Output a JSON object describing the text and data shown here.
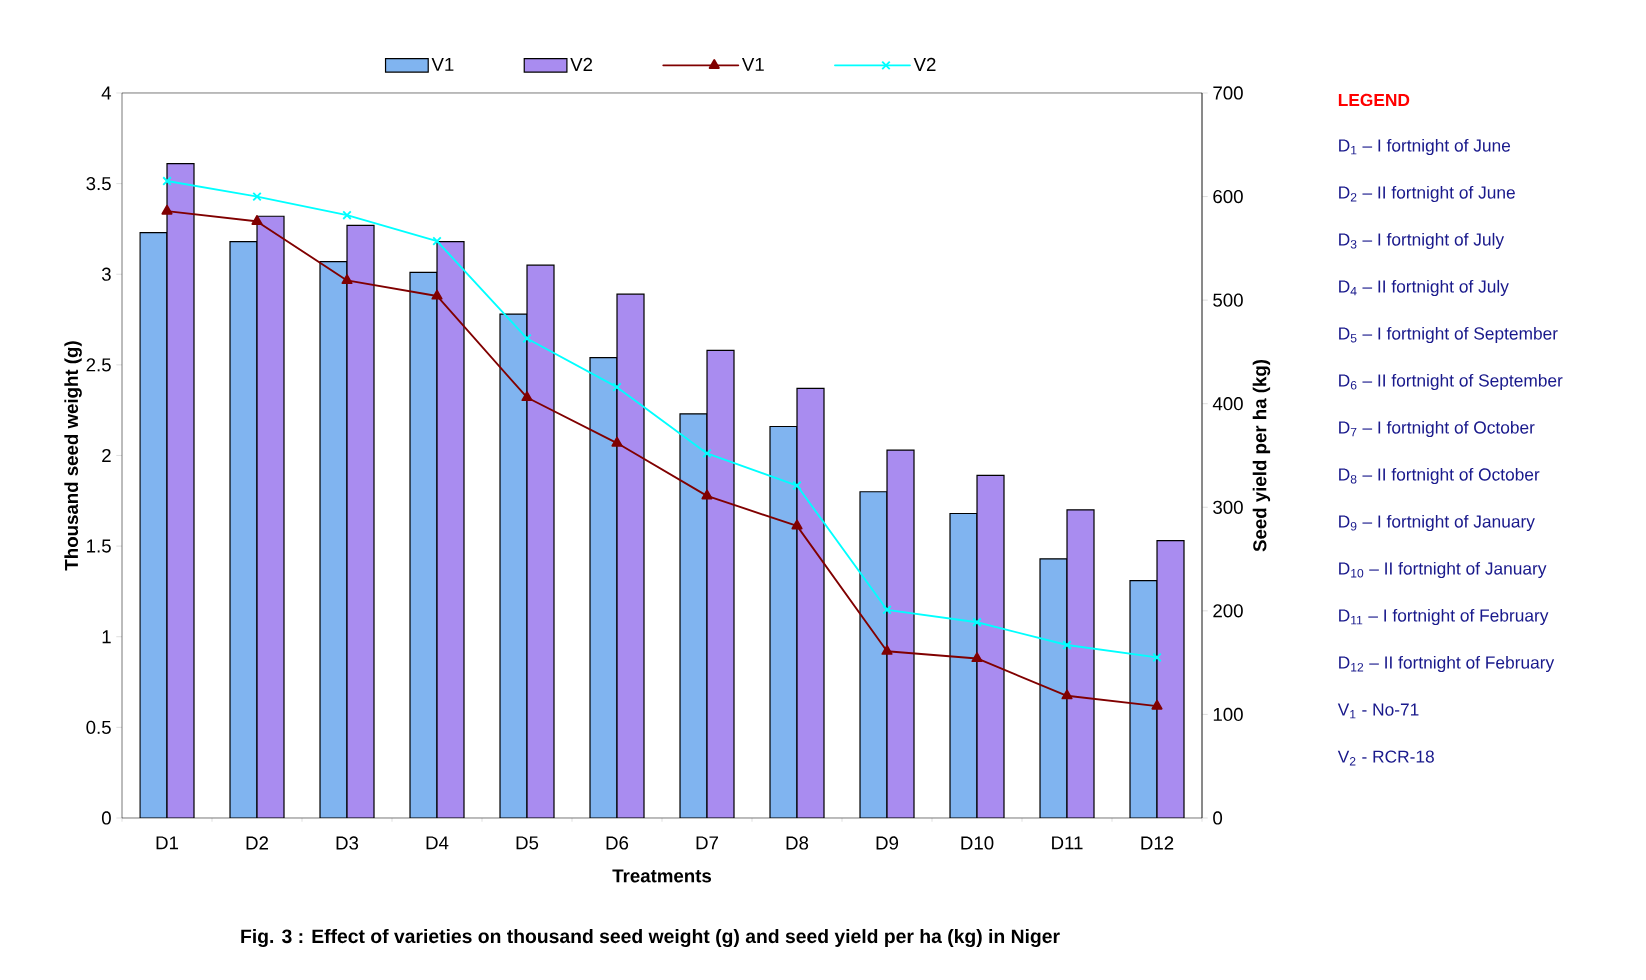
{
  "chart_data": {
    "type": "bar",
    "title": "Fig. 3 : Effect of varieties on thousand seed weight (g) and seed yield per ha (kg) in Niger",
    "xlabel": "Treatments",
    "ylabel": "Thousand seed weight (g)",
    "y2label": "Seed yield per ha (kg)",
    "categories": [
      "D1",
      "D2",
      "D3",
      "D4",
      "D5",
      "D6",
      "D7",
      "D8",
      "D9",
      "D10",
      "D11",
      "D12"
    ],
    "series": [
      {
        "name": "V1",
        "color": "#80b4f0",
        "values": [
          3.23,
          3.18,
          3.07,
          3.01,
          2.78,
          2.54,
          2.23,
          2.16,
          1.8,
          1.68,
          1.43,
          1.31
        ]
      },
      {
        "name": "V2",
        "color": "#a98cf0",
        "values": [
          3.61,
          3.32,
          3.27,
          3.18,
          3.05,
          2.89,
          2.58,
          2.37,
          2.03,
          1.89,
          1.7,
          1.53
        ]
      },
      {
        "name": "V1",
        "type": "line",
        "axis": "y2",
        "marker": "triangle",
        "color": "#800000",
        "values": [
          586,
          576,
          519,
          504,
          406,
          362,
          311,
          282,
          161,
          154,
          118,
          108
        ]
      },
      {
        "name": "V2",
        "type": "line",
        "axis": "y2",
        "marker": "cross",
        "color": "#00ffff",
        "values": [
          615,
          600,
          582,
          557,
          463,
          416,
          352,
          321,
          201,
          189,
          167,
          155
        ]
      }
    ],
    "ylim": [
      0,
      4
    ],
    "yticks": [
      0,
      0.5,
      1,
      1.5,
      2,
      2.5,
      3,
      3.5,
      4
    ],
    "y2lim": [
      0,
      700
    ],
    "y2ticks": [
      0,
      100,
      200,
      300,
      400,
      500,
      600,
      700
    ],
    "legend": "top",
    "grid": false,
    "annotations": [
      "LEGEND",
      "D$_{1}$ – I fortnight of June",
      "D$_{2}$ – II fortnight of June",
      "D$_{3}$ – I fortnight of July",
      "D$_{4}$ – II fortnight of July",
      "D$_{5}$ – I fortnight of September",
      "D$_{6}$ – II fortnight of September",
      "D$_{7}$ – I fortnight of October",
      "D$_{8}$ – II fortnight of October",
      "D$_{9}$ – I fortnight of January",
      "D$_{10}$ – II fortnight of January",
      "D$_{11}$ – I fortnight of February",
      "D$_{12}$ – II fortnight of February",
      "V$_{1}$ - No-71",
      "V$_{2}$ - RCR-18"
    ]
  }
}
